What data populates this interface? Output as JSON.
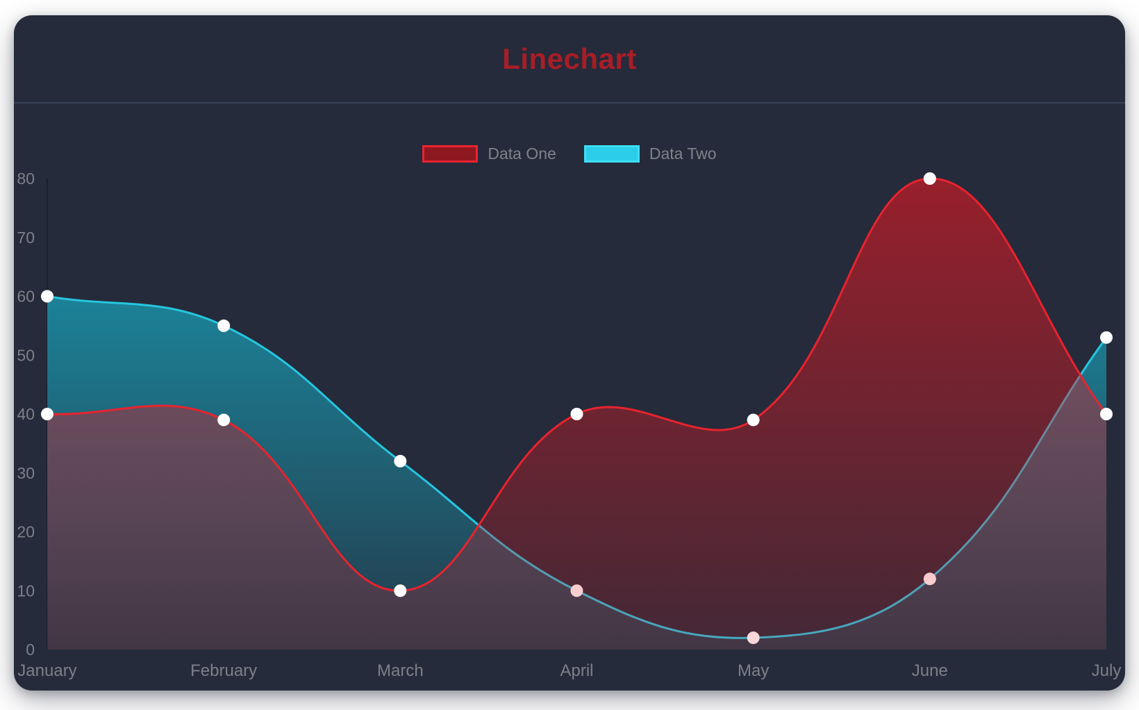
{
  "title": "Linechart",
  "chart_data": {
    "type": "line",
    "title": "Linechart",
    "x_labels": [
      "January",
      "February",
      "March",
      "April",
      "May",
      "June",
      "July"
    ],
    "series": [
      {
        "name": "Data One",
        "values": [
          40,
          39,
          10,
          40,
          39,
          80,
          40
        ],
        "line_color": "#e8232e",
        "fill_top": "rgba(227,24,34,0.60)",
        "fill_bottom": "rgba(227,24,34,0.16)",
        "point_color": "#ffffff",
        "legend_fill": "#8e181f",
        "legend_border": "#ee2230"
      },
      {
        "name": "Data Two",
        "values": [
          60,
          55,
          32,
          10,
          2,
          12,
          53
        ],
        "line_color": "#26c6df",
        "fill_top": "rgba(21,197,224,0.72)",
        "fill_bottom": "rgba(21,197,224,0.10)",
        "point_color": "#ffffff",
        "legend_fill": "#2bcdea",
        "legend_border": "#3fdcf5"
      }
    ],
    "ylim": [
      0,
      80
    ],
    "y_ticks": [
      0,
      10,
      20,
      30,
      40,
      50,
      60,
      70,
      80
    ],
    "grid": false,
    "legend_position": "top",
    "curve_tension": 0.4,
    "line_width": 3,
    "point_radius": 9
  },
  "colors": {
    "page_bg": "#ffffff",
    "card_bg": "#252b3a",
    "title": "#a81d27",
    "divider": "#39415a",
    "tick_label": "#7c808a",
    "legend_label": "#7e828b",
    "axis_line": "rgba(0,0,0,0.25)"
  }
}
